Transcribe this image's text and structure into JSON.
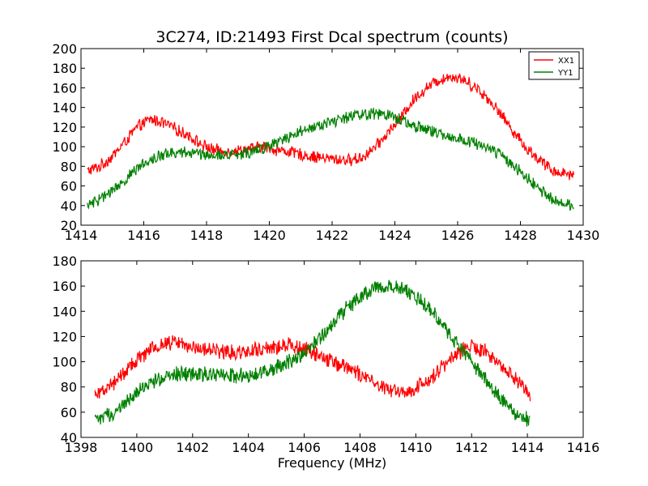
{
  "chart_data": [
    {
      "type": "line",
      "title": "3C274, ID:21493 First Dcal spectrum (counts)",
      "xlabel": "",
      "ylabel": "",
      "xlim": [
        1414,
        1430
      ],
      "ylim": [
        20,
        200
      ],
      "xticks": [
        1414,
        1416,
        1418,
        1420,
        1422,
        1424,
        1426,
        1428,
        1430
      ],
      "yticks": [
        20,
        40,
        60,
        80,
        100,
        120,
        140,
        160,
        180,
        200
      ],
      "grid": false,
      "legend": {
        "placement": "top-right",
        "entries": [
          "XX1",
          "YY1"
        ]
      },
      "x_range_data": [
        1414.2,
        1429.7
      ],
      "noise_amplitude": 7,
      "series": [
        {
          "name": "XX1",
          "color": "#ff0000",
          "points": [
            [
              1414.2,
              75
            ],
            [
              1414.6,
              80
            ],
            [
              1415.0,
              90
            ],
            [
              1415.4,
              105
            ],
            [
              1415.8,
              120
            ],
            [
              1416.2,
              128
            ],
            [
              1416.6,
              125
            ],
            [
              1417.0,
              118
            ],
            [
              1417.4,
              112
            ],
            [
              1417.8,
              103
            ],
            [
              1418.2,
              97
            ],
            [
              1418.6,
              95
            ],
            [
              1419.0,
              96
            ],
            [
              1419.4,
              98
            ],
            [
              1419.8,
              100
            ],
            [
              1420.2,
              97
            ],
            [
              1420.6,
              95
            ],
            [
              1421.0,
              92
            ],
            [
              1421.4,
              90
            ],
            [
              1421.8,
              88
            ],
            [
              1422.2,
              87
            ],
            [
              1422.6,
              86
            ],
            [
              1423.0,
              90
            ],
            [
              1423.4,
              100
            ],
            [
              1423.8,
              115
            ],
            [
              1424.2,
              130
            ],
            [
              1424.6,
              148
            ],
            [
              1425.0,
              160
            ],
            [
              1425.4,
              168
            ],
            [
              1425.8,
              172
            ],
            [
              1426.2,
              168
            ],
            [
              1426.6,
              160
            ],
            [
              1427.0,
              148
            ],
            [
              1427.4,
              132
            ],
            [
              1427.8,
              115
            ],
            [
              1428.2,
              98
            ],
            [
              1428.6,
              87
            ],
            [
              1429.0,
              76
            ],
            [
              1429.4,
              73
            ],
            [
              1429.7,
              72
            ]
          ]
        },
        {
          "name": "YY1",
          "color": "#008000",
          "points": [
            [
              1414.2,
              40
            ],
            [
              1414.6,
              46
            ],
            [
              1415.0,
              55
            ],
            [
              1415.4,
              66
            ],
            [
              1415.8,
              78
            ],
            [
              1416.2,
              87
            ],
            [
              1416.6,
              92
            ],
            [
              1417.0,
              94
            ],
            [
              1417.4,
              94
            ],
            [
              1417.8,
              93
            ],
            [
              1418.2,
              92
            ],
            [
              1418.6,
              91
            ],
            [
              1419.0,
              92
            ],
            [
              1419.4,
              95
            ],
            [
              1419.8,
              99
            ],
            [
              1420.2,
              104
            ],
            [
              1420.6,
              110
            ],
            [
              1421.0,
              116
            ],
            [
              1421.4,
              120
            ],
            [
              1421.8,
              124
            ],
            [
              1422.2,
              127
            ],
            [
              1422.6,
              131
            ],
            [
              1423.0,
              133
            ],
            [
              1423.4,
              134
            ],
            [
              1423.8,
              132
            ],
            [
              1424.2,
              128
            ],
            [
              1424.6,
              122
            ],
            [
              1425.0,
              117
            ],
            [
              1425.4,
              113
            ],
            [
              1425.8,
              110
            ],
            [
              1426.2,
              107
            ],
            [
              1426.6,
              103
            ],
            [
              1427.0,
              98
            ],
            [
              1427.4,
              90
            ],
            [
              1427.8,
              80
            ],
            [
              1428.2,
              68
            ],
            [
              1428.6,
              56
            ],
            [
              1429.0,
              47
            ],
            [
              1429.4,
              42
            ],
            [
              1429.7,
              40
            ]
          ]
        }
      ]
    },
    {
      "type": "line",
      "title": "",
      "xlabel": "Frequency (MHz)",
      "ylabel": "",
      "xlim": [
        1398,
        1416
      ],
      "ylim": [
        40,
        180
      ],
      "xticks": [
        1398,
        1400,
        1402,
        1404,
        1406,
        1408,
        1410,
        1412,
        1414,
        1416
      ],
      "yticks": [
        40,
        60,
        80,
        100,
        120,
        140,
        160,
        180
      ],
      "grid": false,
      "x_range_data": [
        1398.5,
        1414.1
      ],
      "noise_amplitude": 7,
      "series": [
        {
          "name": "XX1",
          "color": "#ff0000",
          "points": [
            [
              1398.5,
              75
            ],
            [
              1399.0,
              80
            ],
            [
              1399.5,
              90
            ],
            [
              1400.0,
              102
            ],
            [
              1400.5,
              110
            ],
            [
              1401.0,
              115
            ],
            [
              1401.5,
              115
            ],
            [
              1402.0,
              112
            ],
            [
              1402.5,
              110
            ],
            [
              1403.0,
              108
            ],
            [
              1403.5,
              108
            ],
            [
              1404.0,
              109
            ],
            [
              1404.5,
              110
            ],
            [
              1405.0,
              112
            ],
            [
              1405.5,
              113
            ],
            [
              1406.0,
              110
            ],
            [
              1406.5,
              106
            ],
            [
              1407.0,
              100
            ],
            [
              1407.5,
              95
            ],
            [
              1408.0,
              90
            ],
            [
              1408.5,
              84
            ],
            [
              1409.0,
              78
            ],
            [
              1409.5,
              76
            ],
            [
              1410.0,
              79
            ],
            [
              1410.5,
              86
            ],
            [
              1411.0,
              97
            ],
            [
              1411.5,
              107
            ],
            [
              1412.0,
              112
            ],
            [
              1412.5,
              108
            ],
            [
              1413.0,
              98
            ],
            [
              1413.5,
              88
            ],
            [
              1414.1,
              75
            ]
          ]
        },
        {
          "name": "YY1",
          "color": "#008000",
          "points": [
            [
              1398.5,
              53
            ],
            [
              1399.0,
              57
            ],
            [
              1399.5,
              65
            ],
            [
              1400.0,
              76
            ],
            [
              1400.5,
              84
            ],
            [
              1401.0,
              89
            ],
            [
              1401.5,
              90
            ],
            [
              1402.0,
              90
            ],
            [
              1402.5,
              90
            ],
            [
              1403.0,
              90
            ],
            [
              1403.5,
              89
            ],
            [
              1404.0,
              89
            ],
            [
              1404.5,
              91
            ],
            [
              1405.0,
              95
            ],
            [
              1405.5,
              100
            ],
            [
              1406.0,
              108
            ],
            [
              1406.5,
              118
            ],
            [
              1407.0,
              130
            ],
            [
              1407.5,
              142
            ],
            [
              1408.0,
              152
            ],
            [
              1408.5,
              158
            ],
            [
              1409.0,
              160
            ],
            [
              1409.5,
              158
            ],
            [
              1410.0,
              152
            ],
            [
              1410.5,
              142
            ],
            [
              1411.0,
              128
            ],
            [
              1411.5,
              114
            ],
            [
              1412.0,
              100
            ],
            [
              1412.5,
              86
            ],
            [
              1413.0,
              72
            ],
            [
              1413.5,
              60
            ],
            [
              1414.1,
              53
            ]
          ]
        }
      ]
    }
  ]
}
